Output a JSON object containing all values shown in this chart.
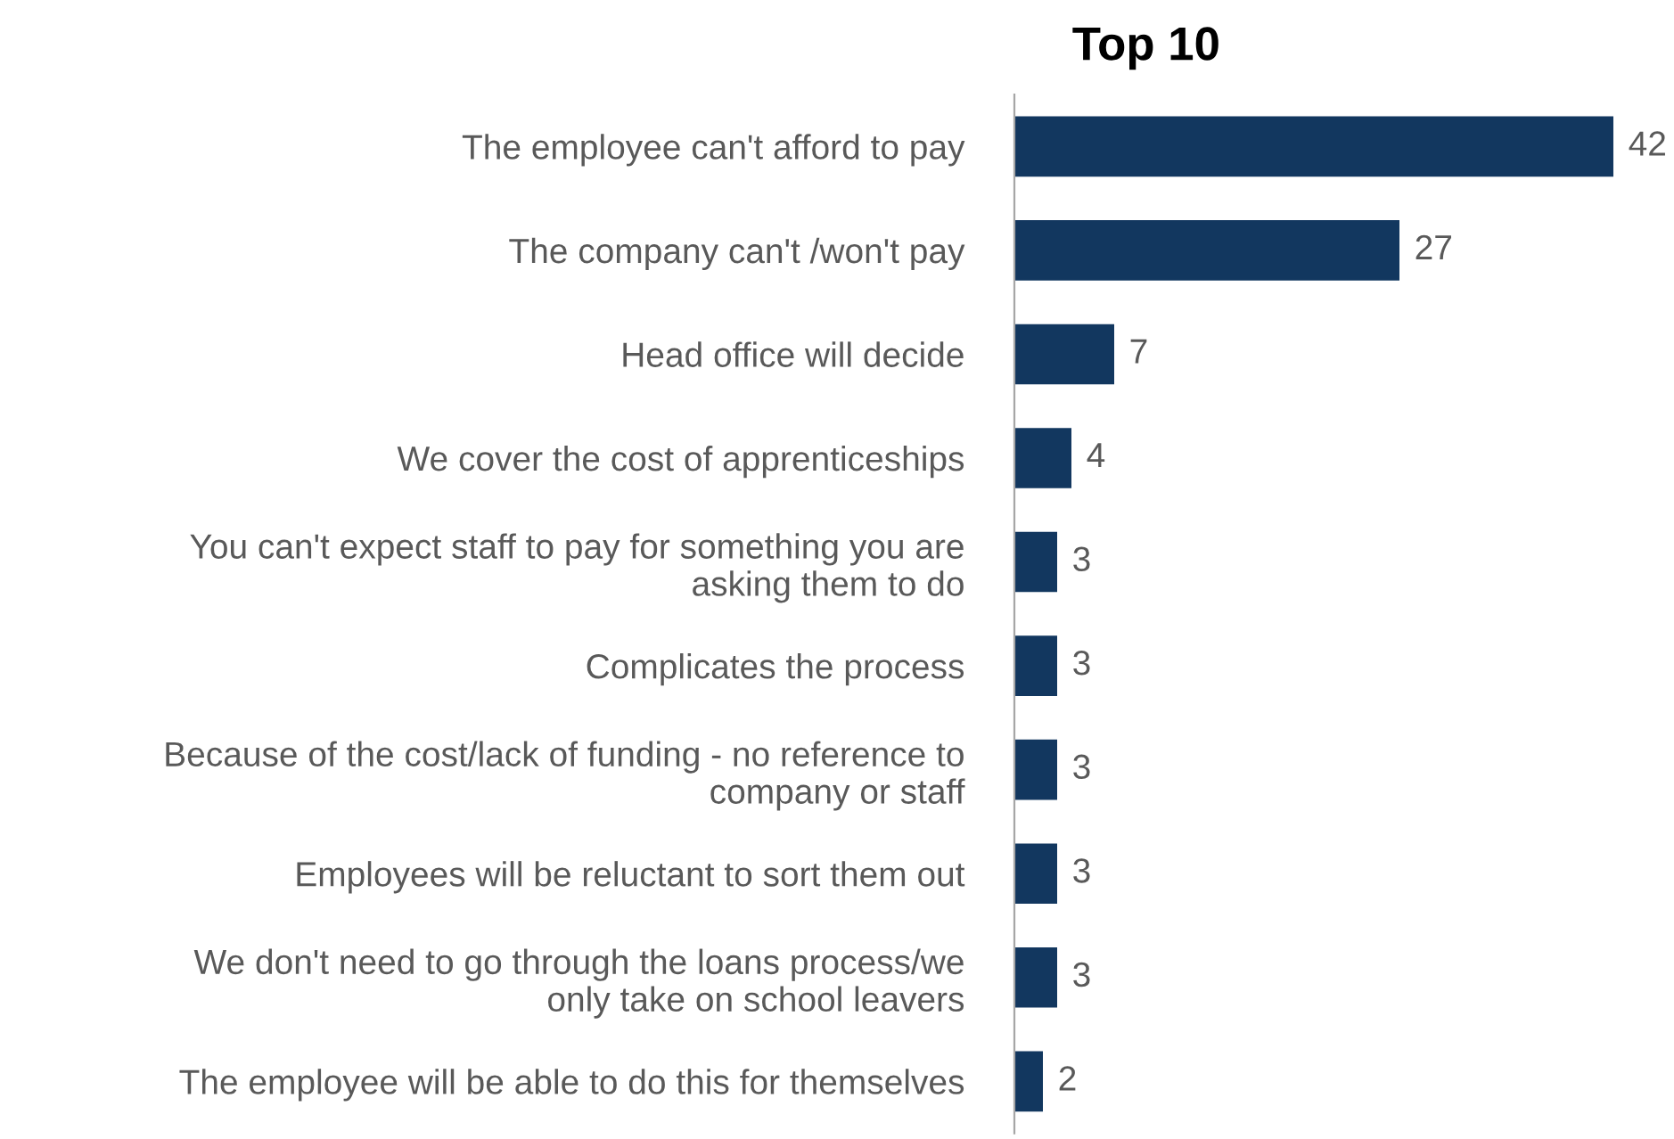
{
  "chart_data": {
    "type": "bar",
    "orientation": "horizontal",
    "title": "Top 10",
    "relative": false,
    "categories": [
      "The employee can't afford to pay",
      "The company can't /won't pay",
      "Head office will decide",
      "We cover the cost of apprenticeships",
      "You can't expect staff to pay for something you are\nasking them to do",
      "Complicates the process",
      "Because of the cost/lack of funding - no reference to\ncompany or staff",
      "Employees will be reluctant to sort them out",
      "We don't need to go through the loans process/we\nonly take on school leavers",
      "The employee will be able to do this for themselves"
    ],
    "values": [
      42,
      27,
      7,
      4,
      3,
      3,
      3,
      3,
      3,
      2
    ],
    "color": "#12375f",
    "data_labels": true,
    "grid": false,
    "legend": false
  }
}
